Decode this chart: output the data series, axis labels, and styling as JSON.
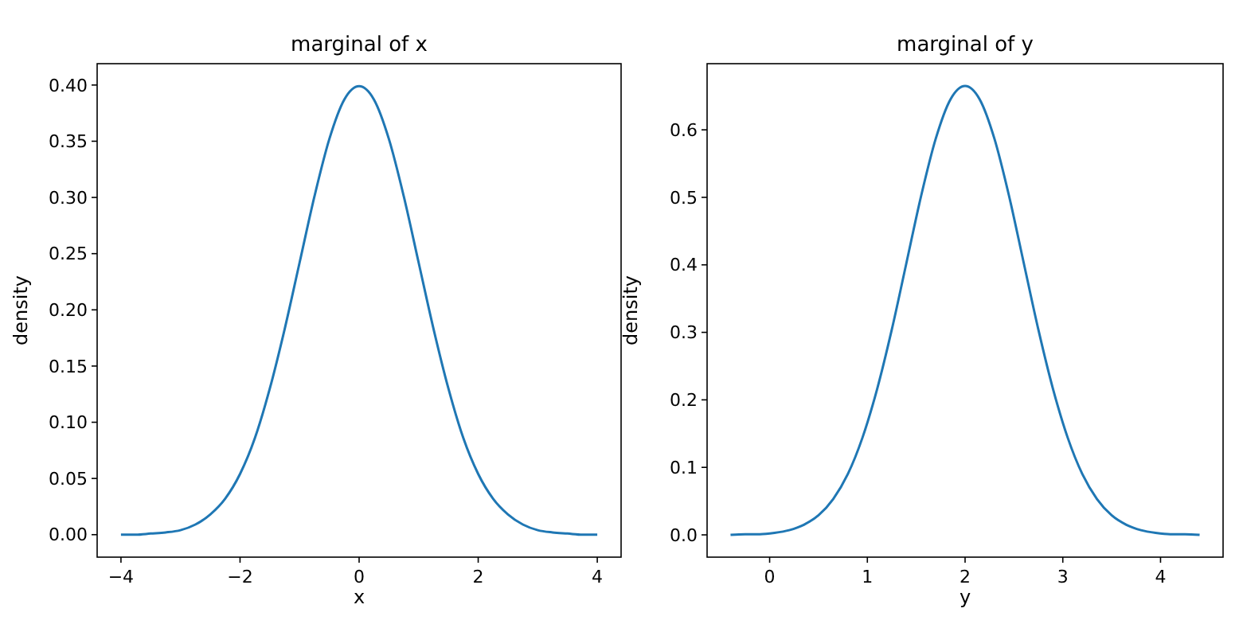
{
  "chart_data": [
    {
      "type": "line",
      "title": "marginal of x",
      "xlabel": "x",
      "ylabel": "density",
      "grid": false,
      "xlim": [
        -4.4,
        4.4
      ],
      "xticks": [
        {
          "value": -4,
          "label": "−4"
        },
        {
          "value": -2,
          "label": "−2"
        },
        0,
        2,
        4
      ],
      "ylim": [
        -0.02,
        0.419
      ],
      "yticks": [
        {
          "value": 0,
          "label": "0.00"
        },
        {
          "value": 0.05,
          "label": "0.05"
        },
        {
          "value": 0.1,
          "label": "0.10"
        },
        {
          "value": 0.15,
          "label": "0.15"
        },
        {
          "value": 0.2,
          "label": "0.20"
        },
        {
          "value": 0.25,
          "label": "0.25"
        },
        {
          "value": 0.3,
          "label": "0.30"
        },
        {
          "value": 0.35,
          "label": "0.35"
        },
        {
          "value": 0.4,
          "label": "0.40"
        }
      ],
      "x": [
        -4,
        -3.75,
        -3.5,
        -3.25,
        -3,
        -2.75,
        -2.5,
        -2.25,
        -2,
        -1.75,
        -1.5,
        -1.25,
        -1,
        -0.75,
        -0.5,
        -0.25,
        0,
        0.25,
        0.5,
        0.75,
        1,
        1.25,
        1.5,
        1.75,
        2,
        2.25,
        2.5,
        2.75,
        3,
        3.25,
        3.5,
        3.75,
        4
      ],
      "series": [
        {
          "color": "#1f77b4",
          "values": [
            0.0,
            0.0,
            0.001,
            0.002,
            0.004,
            0.009,
            0.018,
            0.032,
            0.054,
            0.086,
            0.13,
            0.183,
            0.242,
            0.301,
            0.352,
            0.387,
            0.399,
            0.387,
            0.352,
            0.301,
            0.242,
            0.183,
            0.13,
            0.086,
            0.054,
            0.032,
            0.018,
            0.009,
            0.004,
            0.002,
            0.001,
            0.0,
            0.0
          ]
        }
      ]
    },
    {
      "type": "line",
      "title": "marginal of y",
      "xlabel": "y",
      "ylabel": "density",
      "grid": false,
      "xlim": [
        -0.64,
        4.64
      ],
      "xticks": [
        0,
        1,
        2,
        3,
        4
      ],
      "ylim": [
        -0.033,
        0.698
      ],
      "yticks": [
        {
          "value": 0,
          "label": "0.0"
        },
        {
          "value": 0.1,
          "label": "0.1"
        },
        {
          "value": 0.2,
          "label": "0.2"
        },
        {
          "value": 0.3,
          "label": "0.3"
        },
        {
          "value": 0.4,
          "label": "0.4"
        },
        {
          "value": 0.5,
          "label": "0.5"
        },
        {
          "value": 0.6,
          "label": "0.6"
        }
      ],
      "x": [
        -0.4,
        -0.25,
        -0.1,
        0.05,
        0.2,
        0.35,
        0.5,
        0.65,
        0.8,
        0.95,
        1.1,
        1.25,
        1.4,
        1.55,
        1.7,
        1.85,
        2,
        2.15,
        2.3,
        2.45,
        2.6,
        2.75,
        2.9,
        3.05,
        3.2,
        3.35,
        3.5,
        3.65,
        3.8,
        3.95,
        4.1,
        4.25,
        4.4
      ],
      "series": [
        {
          "color": "#1f77b4",
          "values": [
            0.0,
            0.001,
            0.001,
            0.003,
            0.007,
            0.015,
            0.029,
            0.053,
            0.09,
            0.144,
            0.216,
            0.304,
            0.403,
            0.502,
            0.587,
            0.645,
            0.665,
            0.645,
            0.587,
            0.502,
            0.403,
            0.304,
            0.216,
            0.144,
            0.09,
            0.053,
            0.029,
            0.015,
            0.007,
            0.003,
            0.001,
            0.001,
            0.0
          ]
        }
      ]
    }
  ]
}
